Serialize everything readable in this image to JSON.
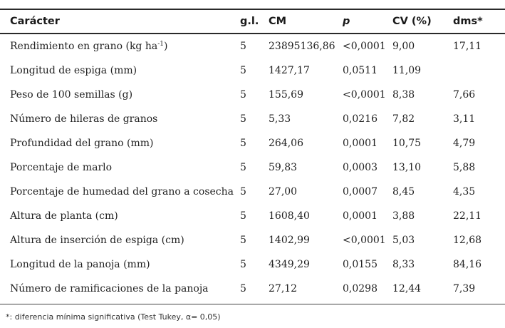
{
  "header": {
    "caracter": "Carácter",
    "gl": "g.l.",
    "cm": "CM",
    "p": "p",
    "cv": "CV (%)",
    "dms": "dms*"
  },
  "rows": [
    {
      "caracter": "Rendimiento en grano (kg ha",
      "sup": "-1",
      "suffix": ")",
      "gl": "5",
      "cm": "23895136,86",
      "p": "<0,0001",
      "cv": "9,00",
      "dms": "17,11"
    },
    {
      "caracter": "Longitud de espiga (mm)",
      "sup": "",
      "suffix": "",
      "gl": "5",
      "cm": "1427,17",
      "p": "0,0511",
      "cv": "11,09",
      "dms": ""
    },
    {
      "caracter": "Peso de 100 semillas (g)",
      "sup": "",
      "suffix": "",
      "gl": "5",
      "cm": "155,69",
      "p": "<0,0001",
      "cv": "8,38",
      "dms": "7,66"
    },
    {
      "caracter": "Número de hileras de granos",
      "sup": "",
      "suffix": "",
      "gl": "5",
      "cm": "5,33",
      "p": "0,0216",
      "cv": "7,82",
      "dms": "3,11"
    },
    {
      "caracter": "Profundidad del grano (mm)",
      "sup": "",
      "suffix": "",
      "gl": "5",
      "cm": "264,06",
      "p": "0,0001",
      "cv": "10,75",
      "dms": "4,79"
    },
    {
      "caracter": "Porcentaje de marlo",
      "sup": "",
      "suffix": "",
      "gl": "5",
      "cm": "59,83",
      "p": "0,0003",
      "cv": "13,10",
      "dms": "5,88"
    },
    {
      "caracter": "Porcentaje de humedad del grano a cosecha",
      "sup": "",
      "suffix": "",
      "gl": "5",
      "cm": "27,00",
      "p": "0,0007",
      "cv": "8,45",
      "dms": "4,35"
    },
    {
      "caracter": "Altura de planta (cm)",
      "sup": "",
      "suffix": "",
      "gl": "5",
      "cm": "1608,40",
      "p": "0,0001",
      "cv": "3,88",
      "dms": "22,11"
    },
    {
      "caracter": "Altura de inserción de espiga (cm)",
      "sup": "",
      "suffix": "",
      "gl": "5",
      "cm": "1402,99",
      "p": "<0,0001",
      "cv": "5,03",
      "dms": "12,68"
    },
    {
      "caracter": "Longitud de la panoja (mm)",
      "sup": "",
      "suffix": "",
      "gl": "5",
      "cm": "4349,29",
      "p": "0,0155",
      "cv": "8,33",
      "dms": "84,16"
    },
    {
      "caracter": "Número de ramificaciones de la panoja",
      "sup": "",
      "suffix": "",
      "gl": "5",
      "cm": "27,12",
      "p": "0,0298",
      "cv": "12,44",
      "dms": "7,39"
    }
  ],
  "footnote": "*: diferencia mínima significativa (Test Tukey, α= 0,05)"
}
